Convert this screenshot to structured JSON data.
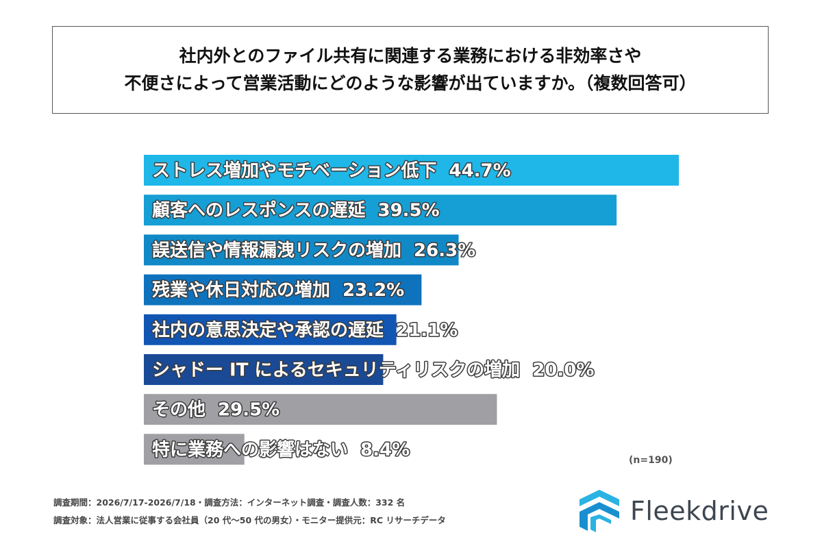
{
  "title": {
    "line1": "社内外とのファイル共有に関連する業務における非効率さや",
    "line2": "不便さによって営業活動にどのような影響が出ていますか。（複数回答可）"
  },
  "chart_data": {
    "type": "bar",
    "orientation": "horizontal",
    "categories": [
      "ストレス増加やモチベーション低下",
      "顧客へのレスポンスの遅延",
      "誤送信や情報漏洩リスクの増加",
      "残業や休日対応の増加",
      "社内の意思決定や承認の遅延",
      "シャドー IT によるセキュリティリスクの増加",
      "その他",
      "特に業務への影響はない"
    ],
    "values": [
      44.7,
      39.5,
      26.3,
      23.2,
      21.1,
      20.0,
      29.5,
      8.4
    ],
    "value_labels": [
      "44.7%",
      "39.5%",
      "26.3%",
      "23.2%",
      "21.1%",
      "20.0%",
      "29.5%",
      "8.4%"
    ],
    "colors": [
      "#1fb6e8",
      "#169fd4",
      "#1189c6",
      "#0f72bd",
      "#1256b4",
      "#1a4a96",
      "#a09fa4",
      "#a09fa4"
    ],
    "xlim": [
      0,
      44.7
    ],
    "grid": false,
    "legend": "none"
  },
  "n_note": "(n=190)",
  "footer": {
    "line1": "調査期間：2026/7/17-2026/7/18・調査方法：インターネット調査・調査人数：332 名",
    "line2": "調査対象：法人営業に従事する会社員（20 代〜50 代の男女）・モニター提供元：RC リサーチデータ"
  },
  "logo": {
    "text": "Fleekdrive",
    "colors": {
      "mark_light": "#2ab3e3",
      "mark_dark": "#1a8fcf",
      "text": "#3e4651"
    }
  }
}
